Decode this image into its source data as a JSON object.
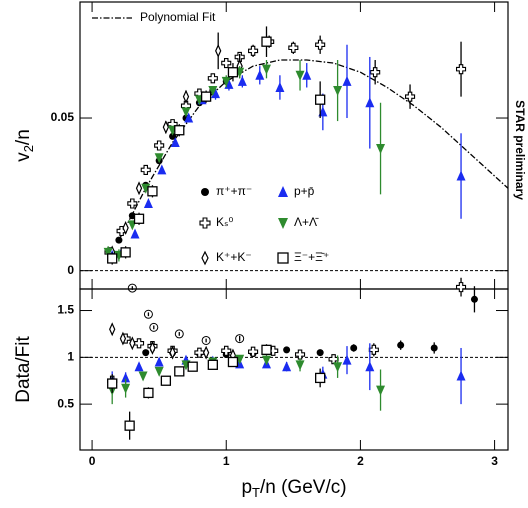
{
  "chart_data": [
    {
      "type": "scatter",
      "ylabel": {
        "base": "v",
        "sub": "2",
        "rest": "/n"
      },
      "side_note": "STAR preliminary",
      "xlim": [
        -0.09,
        3.1
      ],
      "xticks": [
        0,
        1,
        2,
        3
      ],
      "ylim": [
        -0.006,
        0.088
      ],
      "yticks": [
        0,
        0.05
      ],
      "hline": 0,
      "fit": {
        "name": "Polynomial Fit",
        "color": "#000000",
        "x": [
          0.2,
          0.4,
          0.6,
          0.8,
          1.0,
          1.2,
          1.4,
          1.6,
          1.8,
          2.0,
          2.2,
          2.4,
          2.6,
          2.8,
          3.0,
          3.1
        ],
        "values": [
          0.01,
          0.027,
          0.042,
          0.054,
          0.062,
          0.067,
          0.069,
          0.069,
          0.068,
          0.065,
          0.06,
          0.054,
          0.047,
          0.039,
          0.031,
          0.027
        ]
      },
      "series": [
        {
          "name": "π⁺+π⁻",
          "marker": "circle",
          "color": "#000000",
          "x": [
            0.2,
            0.3,
            0.4,
            0.5,
            0.6,
            0.7,
            0.8,
            0.9,
            1.0
          ],
          "values": [
            0.01,
            0.018,
            0.028,
            0.036,
            0.044,
            0.05,
            0.055,
            0.059,
            0.062
          ],
          "errors": [
            0.001,
            0.001,
            0.001,
            0.001,
            0.001,
            0.001,
            0.001,
            0.001,
            0.001
          ]
        },
        {
          "name": "Kₛ⁰",
          "marker": "cross",
          "color": "#000000",
          "x": [
            0.13,
            0.22,
            0.3,
            0.4,
            0.5,
            0.6,
            0.7,
            0.8,
            0.9,
            1.0,
            1.1,
            1.2,
            1.32,
            1.5,
            1.7,
            2.11,
            2.37,
            2.75
          ],
          "values": [
            0.006,
            0.013,
            0.022,
            0.033,
            0.041,
            0.048,
            0.054,
            0.058,
            0.063,
            0.068,
            0.07,
            0.072,
            0.075,
            0.073,
            0.074,
            0.065,
            0.057,
            0.066
          ],
          "errors": [
            0.001,
            0.001,
            0.001,
            0.001,
            0.001,
            0.001,
            0.001,
            0.001,
            0.001,
            0.001,
            0.001,
            0.002,
            0.002,
            0.002,
            0.003,
            0.004,
            0.004,
            0.009
          ]
        },
        {
          "name": "K⁺+K⁻",
          "marker": "diamond",
          "color": "#000000",
          "x": [
            0.15,
            0.25,
            0.35,
            0.55,
            0.7,
            0.94,
            1.1
          ],
          "values": [
            0.006,
            0.014,
            0.027,
            0.047,
            0.057,
            0.072,
            0.067
          ],
          "errors": [
            0.001,
            0.001,
            0.001,
            0.002,
            0.002,
            0.006,
            0.004
          ]
        },
        {
          "name": "p+p̄",
          "marker": "tri-up",
          "color": "#1a2cf0",
          "x": [
            0.15,
            0.22,
            0.32,
            0.42,
            0.52,
            0.62,
            0.72,
            0.82,
            0.92,
            1.02,
            1.12,
            1.25,
            1.4,
            1.6,
            1.72,
            1.9,
            2.07,
            2.75
          ],
          "values": [
            0.005,
            0.006,
            0.012,
            0.022,
            0.033,
            0.042,
            0.05,
            0.056,
            0.058,
            0.061,
            0.062,
            0.064,
            0.06,
            0.064,
            0.052,
            0.062,
            0.055,
            0.031
          ],
          "errors": [
            0.001,
            0.001,
            0.001,
            0.001,
            0.001,
            0.001,
            0.001,
            0.001,
            0.002,
            0.002,
            0.002,
            0.003,
            0.004,
            0.004,
            0.006,
            0.012,
            0.015,
            0.014
          ]
        },
        {
          "name": "Λ+Λ̄",
          "marker": "tri-down",
          "color": "#2e8b2e",
          "x": [
            0.12,
            0.2,
            0.3,
            0.4,
            0.5,
            0.6,
            0.7,
            0.8,
            0.9,
            1.0,
            1.1,
            1.3,
            1.55,
            1.83,
            2.15
          ],
          "values": [
            0.006,
            0.005,
            0.015,
            0.027,
            0.037,
            0.046,
            0.052,
            0.056,
            0.059,
            0.062,
            0.065,
            0.066,
            0.064,
            0.059,
            0.04
          ],
          "errors": [
            0.002,
            0.002,
            0.001,
            0.001,
            0.001,
            0.001,
            0.001,
            0.001,
            0.001,
            0.002,
            0.002,
            0.003,
            0.005,
            0.01,
            0.015
          ]
        },
        {
          "name": "Ξ⁻+Ξ̄⁺",
          "marker": "square",
          "color": "#000000",
          "x": [
            0.15,
            0.25,
            0.35,
            0.45,
            0.65,
            0.85,
            1.05,
            1.3,
            1.7
          ],
          "values": [
            0.004,
            0.006,
            0.017,
            0.026,
            0.046,
            0.057,
            0.065,
            0.075,
            0.056
          ],
          "errors": [
            0.002,
            0.002,
            0.002,
            0.002,
            0.002,
            0.002,
            0.003,
            0.005,
            0.006
          ]
        }
      ]
    },
    {
      "type": "scatter",
      "xlabel": {
        "base": "p",
        "sub": "T",
        "rest": "/n (GeV/c)"
      },
      "ylabel": {
        "base": "Data/Fit",
        "sub": "",
        "rest": ""
      },
      "xlim": [
        -0.09,
        3.1
      ],
      "xticks": [
        0,
        1,
        2,
        3
      ],
      "ylim": [
        0.01,
        1.73
      ],
      "yticks": [
        0.5,
        1,
        1.5
      ],
      "hline": 1,
      "series": [
        {
          "marker": "circle-open",
          "color": "#000000",
          "x": [
            0.3,
            0.42,
            0.46,
            0.65,
            0.85,
            1.1
          ],
          "values": [
            1.74,
            1.46,
            1.32,
            1.25,
            1.18,
            1.2
          ],
          "errors": [
            0.02,
            0.02,
            0.02,
            0.02,
            0.02,
            0.03
          ]
        },
        {
          "marker": "circle",
          "color": "#000000",
          "x": [
            0.4,
            0.6,
            0.8,
            1.0,
            1.2,
            1.45,
            1.7,
            1.95,
            2.3,
            2.55,
            2.85
          ],
          "values": [
            1.05,
            1.05,
            1.04,
            1.03,
            1.04,
            1.08,
            1.05,
            1.1,
            1.13,
            1.1,
            1.62
          ],
          "errors": [
            0.01,
            0.01,
            0.01,
            0.01,
            0.02,
            0.02,
            0.03,
            0.04,
            0.05,
            0.06,
            0.14
          ]
        },
        {
          "marker": "cross",
          "color": "#000000",
          "x": [
            0.15,
            0.25,
            0.35,
            0.45,
            0.6,
            0.8,
            1.0,
            1.2,
            1.35,
            1.55,
            1.8,
            2.1,
            2.75
          ],
          "values": [
            0.75,
            1.2,
            1.15,
            1.12,
            1.07,
            1.05,
            1.07,
            1.06,
            1.07,
            1.03,
            0.98,
            1.08,
            1.75
          ],
          "errors": [
            0.05,
            0.04,
            0.03,
            0.02,
            0.02,
            0.02,
            0.02,
            0.02,
            0.03,
            0.03,
            0.05,
            0.07,
            0.1
          ]
        },
        {
          "marker": "diamond",
          "color": "#000000",
          "x": [
            0.15,
            0.23,
            0.3,
            0.45,
            0.6,
            0.85,
            1.05
          ],
          "values": [
            1.3,
            1.2,
            1.15,
            1.1,
            1.05,
            1.05,
            1.02
          ],
          "errors": [
            0.06,
            0.04,
            0.03,
            0.03,
            0.03,
            0.04,
            0.05
          ]
        },
        {
          "marker": "tri-up",
          "color": "#1a2cf0",
          "x": [
            0.15,
            0.25,
            0.35,
            0.5,
            0.7,
            0.9,
            1.1,
            1.3,
            1.45,
            1.72,
            1.9,
            2.07,
            2.75
          ],
          "values": [
            0.75,
            0.78,
            0.9,
            0.95,
            0.97,
            0.96,
            0.93,
            0.93,
            0.9,
            0.82,
            0.97,
            0.9,
            0.8
          ],
          "errors": [
            0.1,
            0.06,
            0.04,
            0.03,
            0.03,
            0.03,
            0.03,
            0.04,
            0.05,
            0.08,
            0.15,
            0.25,
            0.3
          ]
        },
        {
          "marker": "tri-down",
          "color": "#2e8b2e",
          "x": [
            0.15,
            0.25,
            0.38,
            0.5,
            0.7,
            0.9,
            1.1,
            1.3,
            1.55,
            1.83,
            2.15
          ],
          "values": [
            0.65,
            0.67,
            0.8,
            0.85,
            0.92,
            0.95,
            0.98,
            0.97,
            0.92,
            0.9,
            0.65
          ],
          "errors": [
            0.15,
            0.1,
            0.04,
            0.03,
            0.02,
            0.02,
            0.03,
            0.04,
            0.07,
            0.12,
            0.22
          ]
        },
        {
          "marker": "square",
          "color": "#000000",
          "x": [
            0.15,
            0.28,
            0.42,
            0.55,
            0.65,
            0.75,
            0.9,
            1.05,
            1.3,
            1.7
          ],
          "values": [
            0.72,
            0.27,
            0.62,
            0.75,
            0.85,
            0.9,
            0.92,
            0.95,
            1.08,
            0.78
          ],
          "errors": [
            0.1,
            0.15,
            0.06,
            0.04,
            0.03,
            0.03,
            0.03,
            0.04,
            0.06,
            0.1
          ]
        }
      ]
    }
  ]
}
